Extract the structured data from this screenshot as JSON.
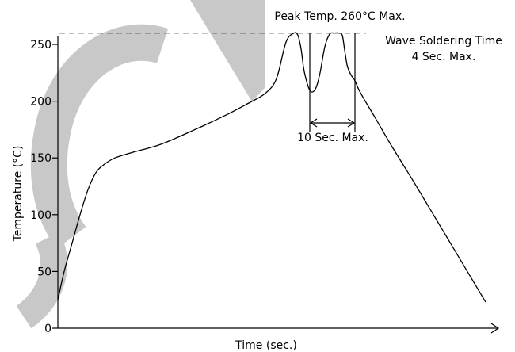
{
  "chart_data": {
    "type": "line",
    "xlabel": "Time (sec.)",
    "ylabel": "Temperature (°C)",
    "ylim": [
      0,
      270
    ],
    "yticks": [
      0,
      50,
      100,
      150,
      200,
      250
    ],
    "ytick_labels": [
      "0",
      "50",
      "100",
      "150",
      "200",
      "250"
    ],
    "x_tick_labels_shown": false,
    "grid": false,
    "watermark_text": "CONFIDENTIAL",
    "series": [
      {
        "x": [
          0,
          8,
          18,
          28,
          38,
          48,
          58,
          72,
          95,
          130,
          170,
          210,
          240,
          262,
          276,
          288,
          298,
          303,
          307,
          310,
          313,
          317,
          321,
          326,
          331,
          337,
          343,
          349,
          355,
          359,
          362,
          365,
          368,
          371,
          375,
          380,
          388,
          400,
          420,
          450,
          480,
          510,
          540
        ],
        "y": [
          25,
          50,
          75,
          100,
          122,
          137,
          144,
          150,
          155,
          162,
          174,
          187,
          198,
          207,
          220,
          252,
          260,
          258,
          246,
          230,
          220,
          211,
          208,
          212,
          225,
          248,
          259,
          260,
          260,
          258,
          245,
          232,
          226,
          222,
          218,
          210,
          200,
          186,
          162,
          128,
          93,
          58,
          23
        ]
      }
    ],
    "reference_line": {
      "y": 260,
      "style": "dashed"
    },
    "annotations": {
      "peak": "Peak Temp. 260°C Max.",
      "wave_line1": "Wave Soldering Time",
      "wave_line2": "4 Sec. Max.",
      "duration": "10 Sec. Max."
    }
  }
}
